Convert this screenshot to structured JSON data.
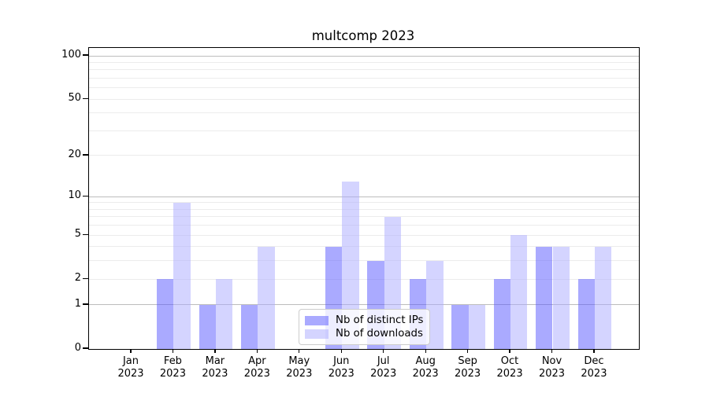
{
  "chart_data": {
    "type": "bar",
    "title": "multcomp 2023",
    "categories": [
      "Jan",
      "Feb",
      "Mar",
      "Apr",
      "May",
      "Jun",
      "Jul",
      "Aug",
      "Sep",
      "Oct",
      "Nov",
      "Dec"
    ],
    "xtick_year_line": "2023",
    "series": [
      {
        "name": "Nb of distinct IPs",
        "color": "#5555ff",
        "values": [
          0,
          2,
          1,
          1,
          0,
          4,
          3,
          2,
          1,
          2,
          4,
          2
        ]
      },
      {
        "name": "Nb of downloads",
        "color": "#aaaaff",
        "values": [
          0,
          9,
          2,
          4,
          0,
          13,
          7,
          3,
          1,
          5,
          4,
          4
        ]
      }
    ],
    "bar_alpha": 0.5,
    "yscale": "log1p",
    "ylim": [
      0,
      113
    ],
    "ytick_values": [
      0,
      1,
      2,
      5,
      10,
      20,
      50,
      100
    ],
    "major_gridlines": [
      1,
      10,
      100
    ],
    "minor_gridlines": [
      2,
      3,
      4,
      5,
      6,
      7,
      8,
      9,
      20,
      30,
      40,
      50,
      60,
      70,
      80,
      90
    ],
    "grid": true,
    "legend_position": "lower center",
    "xlabel": "",
    "ylabel": ""
  },
  "colors": {
    "bar_dark": "#5555ff",
    "bar_light": "#aaaaff",
    "major_grid": "#bdbdbd",
    "minor_grid": "#ececec",
    "spine": "#000000",
    "legend_border": "#cccccc"
  }
}
